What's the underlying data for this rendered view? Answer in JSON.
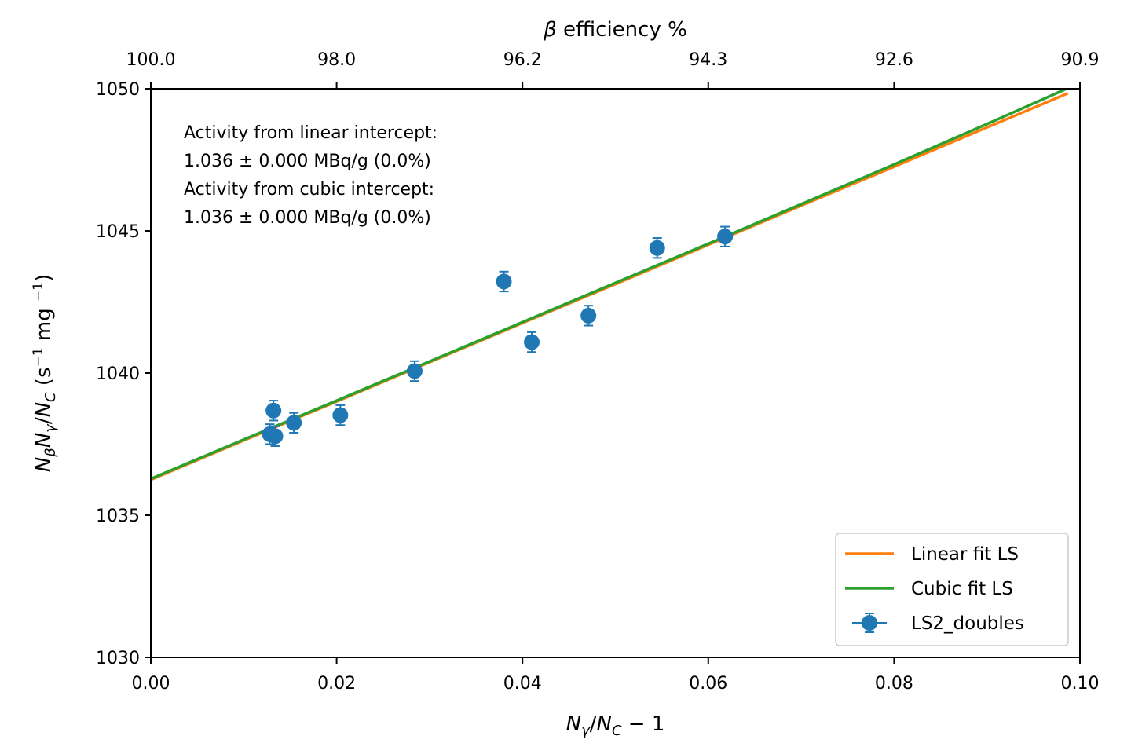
{
  "chart_data": {
    "type": "scatter",
    "xlabel": "N_γ/N_C − 1",
    "ylabel": "N_βN_γ/N_C (s⁻¹ mg ⁻¹)",
    "top_xlabel": "β efficiency %",
    "xlim": [
      0.0,
      0.1
    ],
    "ylim": [
      1030,
      1050
    ],
    "x_ticks": [
      "0.00",
      "0.02",
      "0.04",
      "0.06",
      "0.08",
      "0.10"
    ],
    "y_ticks": [
      "1030",
      "1035",
      "1040",
      "1045",
      "1050"
    ],
    "top_ticks": [
      "100.0",
      "98.0",
      "96.2",
      "94.3",
      "92.6",
      "90.9"
    ],
    "grid": false,
    "legend_position": "lower-right",
    "annotation": [
      "Activity from linear intercept:",
      "1.036 ± 0.000 MBq/g (0.0%)",
      "Activity from cubic intercept:",
      "1.036  ± 0.000 MBq/g (0.0%)"
    ],
    "series": [
      {
        "name": "Linear fit LS",
        "kind": "line",
        "color": "#ff7f0e",
        "x": [
          0.0,
          0.01,
          0.02,
          0.03,
          0.04,
          0.05,
          0.06,
          0.07,
          0.08,
          0.09,
          0.0987
        ],
        "y": [
          1036.25,
          1037.63,
          1039.0,
          1040.38,
          1041.76,
          1043.13,
          1044.51,
          1045.89,
          1047.26,
          1048.64,
          1049.84
        ]
      },
      {
        "name": "Cubic fit LS",
        "kind": "line",
        "color": "#2ca02c",
        "x": [
          0.0,
          0.01,
          0.02,
          0.03,
          0.04,
          0.05,
          0.06,
          0.07,
          0.08,
          0.09,
          0.0987
        ],
        "y": [
          1036.28,
          1037.66,
          1039.03,
          1040.41,
          1041.79,
          1043.17,
          1044.55,
          1045.94,
          1047.34,
          1048.76,
          1050.02
        ]
      },
      {
        "name": "LS2_doubles",
        "kind": "errorbar",
        "color": "#1f77b4",
        "x": [
          0.0128,
          0.0132,
          0.0134,
          0.0154,
          0.0204,
          0.0284,
          0.038,
          0.041,
          0.0471,
          0.0545,
          0.0618
        ],
        "y": [
          1037.85,
          1038.68,
          1037.78,
          1038.25,
          1038.52,
          1040.07,
          1043.22,
          1041.09,
          1042.02,
          1044.4,
          1044.8
        ],
        "yerr": [
          0.35,
          0.35,
          0.35,
          0.35,
          0.35,
          0.35,
          0.35,
          0.35,
          0.35,
          0.35,
          0.35
        ]
      }
    ]
  }
}
